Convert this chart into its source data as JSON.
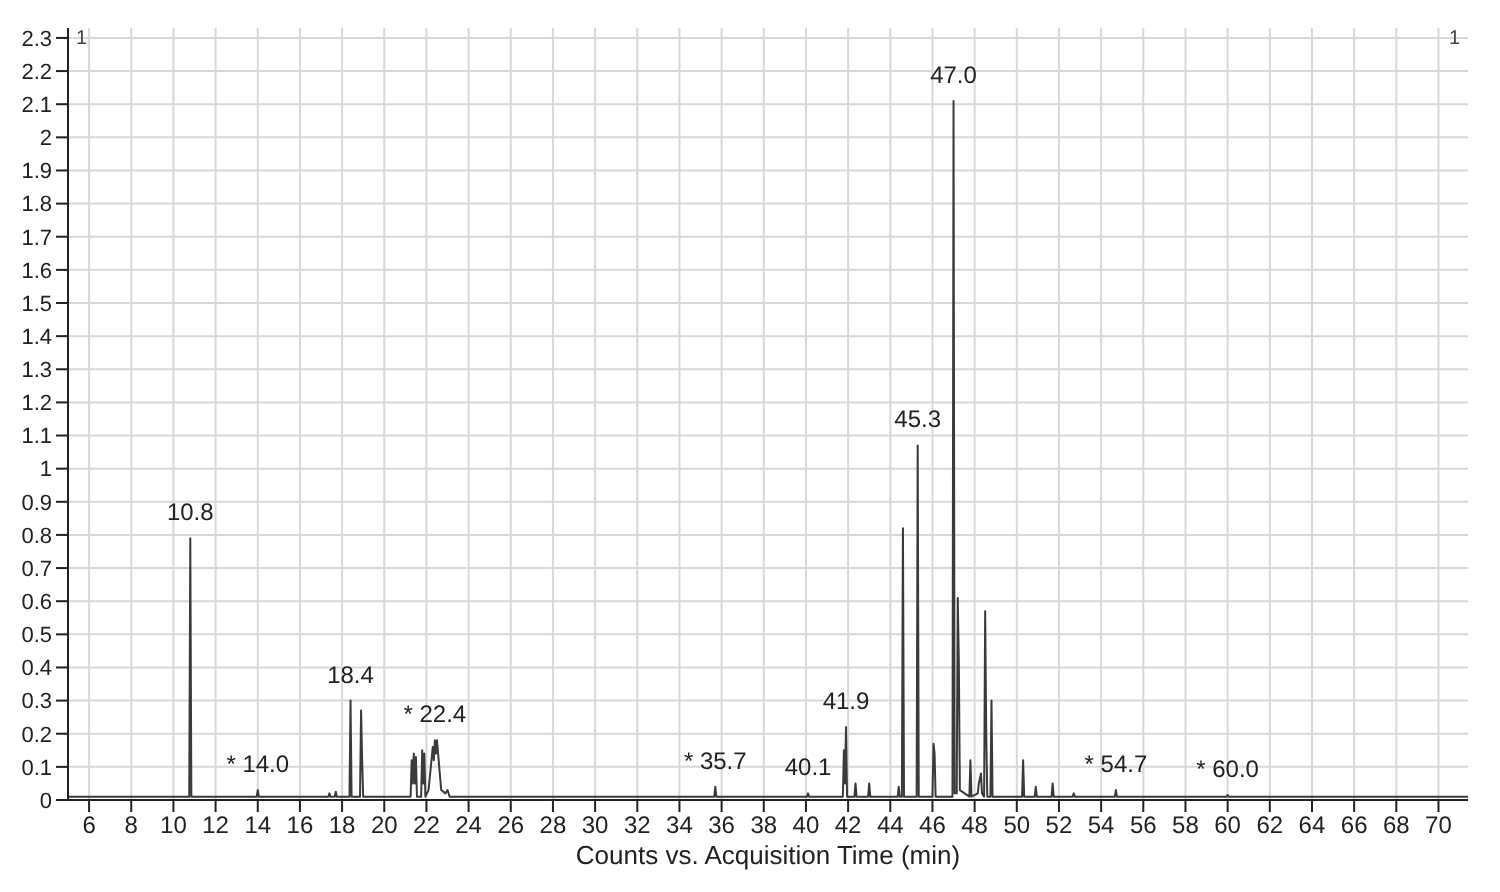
{
  "chart_data": {
    "type": "line",
    "xlabel": "Counts vs. Acquisition Time (min)",
    "xlim": [
      5,
      71.4
    ],
    "xticks": [
      6,
      8,
      10,
      12,
      14,
      16,
      18,
      20,
      22,
      24,
      26,
      28,
      30,
      32,
      34,
      36,
      38,
      40,
      42,
      44,
      46,
      48,
      50,
      52,
      54,
      56,
      58,
      60,
      62,
      64,
      66,
      68,
      70
    ],
    "ylim": [
      0,
      2.33
    ],
    "yticks": [
      0,
      0.1,
      0.2,
      0.3,
      0.4,
      0.5,
      0.6,
      0.7,
      0.8,
      0.9,
      1,
      1.1,
      1.2,
      1.3,
      1.4,
      1.5,
      1.6,
      1.7,
      1.8,
      1.9,
      2,
      2.1,
      2.2,
      2.3
    ],
    "grid": true,
    "marker": "none",
    "line_style": "solid",
    "series": [
      {
        "color": "#3a3a3a",
        "x": [
          5.0,
          10.75,
          10.8,
          10.85,
          13.95,
          14.0,
          14.05,
          17.35,
          17.4,
          17.45,
          17.65,
          17.7,
          17.75,
          18.35,
          18.4,
          18.45,
          18.85,
          18.9,
          18.95,
          19.0,
          21.25,
          21.3,
          21.35,
          21.4,
          21.45,
          21.5,
          21.55,
          21.75,
          21.8,
          21.85,
          21.9,
          21.95,
          22.1,
          22.3,
          22.35,
          22.4,
          22.45,
          22.5,
          22.7,
          22.9,
          23.0,
          23.1,
          35.65,
          35.7,
          35.75,
          40.05,
          40.1,
          40.15,
          41.75,
          41.8,
          41.85,
          41.9,
          41.95,
          42.3,
          42.35,
          42.4,
          42.95,
          43.0,
          43.05,
          44.35,
          44.4,
          44.45,
          44.55,
          44.6,
          44.65,
          45.25,
          45.3,
          45.35,
          46.0,
          46.05,
          46.1,
          46.15,
          46.95,
          47.0,
          47.05,
          47.15,
          47.2,
          47.25,
          47.3,
          47.75,
          47.8,
          47.85,
          48.15,
          48.2,
          48.3,
          48.35,
          48.45,
          48.5,
          48.55,
          48.6,
          48.75,
          48.8,
          48.85,
          50.25,
          50.3,
          50.35,
          50.85,
          50.9,
          50.95,
          51.65,
          51.7,
          51.75,
          52.65,
          52.7,
          52.75,
          54.65,
          54.7,
          54.75,
          59.95,
          60.0,
          60.05,
          71.4
        ],
        "values": [
          0.01,
          0.01,
          0.79,
          0.01,
          0.01,
          0.03,
          0.01,
          0.01,
          0.02,
          0.01,
          0.01,
          0.025,
          0.01,
          0.01,
          0.3,
          0.01,
          0.01,
          0.27,
          0.12,
          0.01,
          0.01,
          0.12,
          0.05,
          0.14,
          0.05,
          0.13,
          0.01,
          0.01,
          0.15,
          0.05,
          0.14,
          0.01,
          0.03,
          0.16,
          0.12,
          0.18,
          0.14,
          0.18,
          0.03,
          0.02,
          0.03,
          0.01,
          0.01,
          0.04,
          0.01,
          0.01,
          0.02,
          0.01,
          0.01,
          0.15,
          0.05,
          0.22,
          0.01,
          0.01,
          0.05,
          0.01,
          0.01,
          0.05,
          0.01,
          0.01,
          0.04,
          0.01,
          0.01,
          0.82,
          0.01,
          0.01,
          1.07,
          0.01,
          0.01,
          0.17,
          0.14,
          0.01,
          0.01,
          2.11,
          0.02,
          0.02,
          0.61,
          0.42,
          0.03,
          0.01,
          0.12,
          0.01,
          0.02,
          0.05,
          0.08,
          0.02,
          0.01,
          0.57,
          0.2,
          0.01,
          0.01,
          0.3,
          0.01,
          0.01,
          0.12,
          0.01,
          0.01,
          0.04,
          0.01,
          0.01,
          0.05,
          0.01,
          0.01,
          0.02,
          0.01,
          0.01,
          0.03,
          0.01,
          0.01,
          0.015,
          0.01,
          0.01
        ]
      }
    ],
    "annotations": [
      "1",
      {
        "text": "10.8",
        "x": 10.8,
        "y": 0.79
      },
      {
        "text": "* 14.0",
        "x": 14.0,
        "y": 0.03
      },
      {
        "text": "18.4",
        "x": 18.4,
        "y": 0.3
      },
      {
        "text": "* 22.4",
        "x": 22.4,
        "y": 0.18
      },
      {
        "text": "* 35.7",
        "x": 35.7,
        "y": 0.04
      },
      {
        "text": "40.1",
        "x": 40.1,
        "y": 0.02
      },
      {
        "text": "41.9",
        "x": 41.9,
        "y": 0.22
      },
      {
        "text": "45.3",
        "x": 45.3,
        "y": 1.07
      },
      {
        "text": "47.0",
        "x": 47.0,
        "y": 2.11
      },
      {
        "text": "* 54.7",
        "x": 54.7,
        "y": 0.03
      },
      {
        "text": "* 60.0",
        "x": 60.0,
        "y": 0.015
      },
      "1"
    ]
  }
}
